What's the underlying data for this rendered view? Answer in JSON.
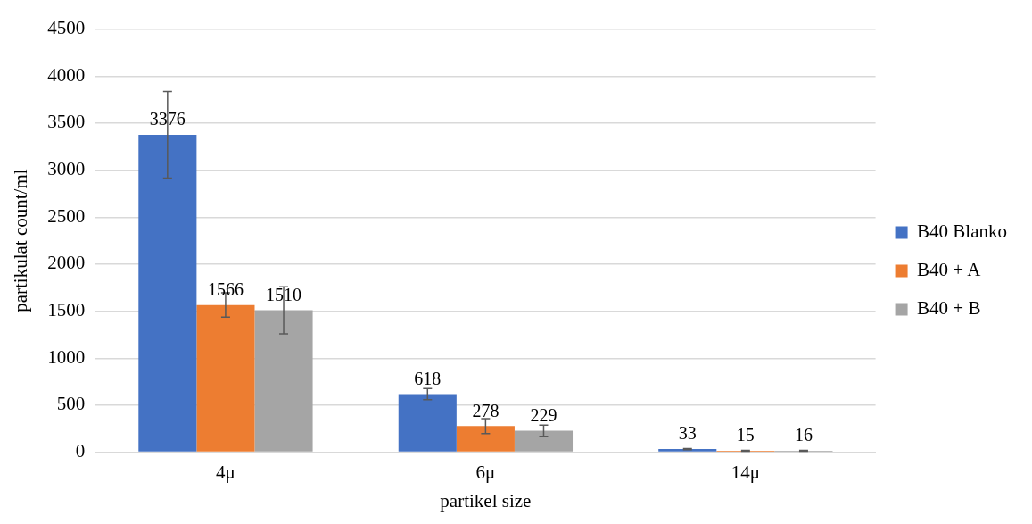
{
  "chart_data": {
    "type": "bar",
    "xlabel": "partikel size",
    "ylabel": "partikulat count/ml",
    "categories": [
      "4μ",
      "6μ",
      "14μ"
    ],
    "series": [
      {
        "name": "B40 Blanko",
        "color": "#4472c4",
        "values": [
          3376,
          618,
          33
        ],
        "errors": [
          460,
          60,
          5
        ]
      },
      {
        "name": "B40 + A",
        "color": "#ed7d31",
        "values": [
          1566,
          278,
          15
        ],
        "errors": [
          130,
          80,
          5
        ]
      },
      {
        "name": "B40 + B",
        "color": "#a5a5a5",
        "values": [
          1510,
          229,
          16
        ],
        "errors": [
          250,
          60,
          5
        ]
      }
    ],
    "ylim": [
      0,
      4500
    ],
    "yticks": [
      0,
      500,
      1000,
      1500,
      2000,
      2500,
      3000,
      3500,
      4000,
      4500
    ],
    "grid": "y",
    "legend": "right",
    "data_labels": true
  }
}
